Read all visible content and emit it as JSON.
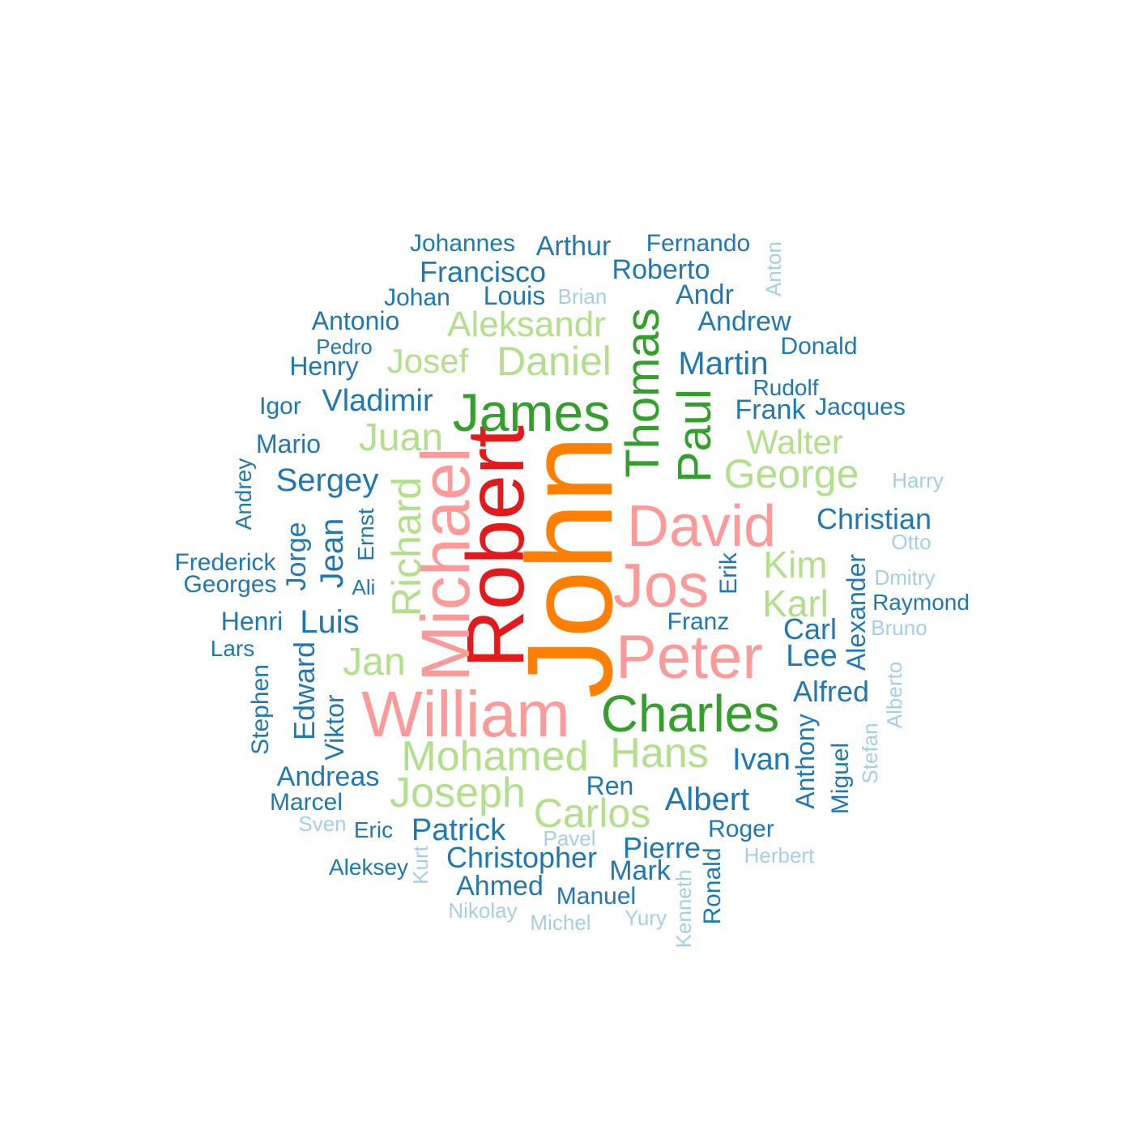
{
  "colors": {
    "tier1": "#ff7f00",
    "tier2": "#e31a1c",
    "tier3": "#fb9a99",
    "tier4": "#33a02c",
    "tier5": "#b2df8a",
    "tier6": "#1f78b4",
    "tier7": "#a6cee3"
  },
  "words": [
    "John",
    "Robert",
    "Michael",
    "David",
    "Jos",
    "Peter",
    "William",
    "James",
    "Thomas",
    "Paul",
    "Charles",
    "Aleksandr",
    "Daniel",
    "Josef",
    "Juan",
    "Richard",
    "Walter",
    "George",
    "Kim",
    "Karl",
    "Jan",
    "Mohamed",
    "Hans",
    "Joseph",
    "Carlos",
    "Johannes",
    "Arthur",
    "Fernando",
    "Francisco",
    "Roberto",
    "Johan",
    "Louis",
    "Andr",
    "Antonio",
    "Andrew",
    "Pedro",
    "Henry",
    "Martin",
    "Donald",
    "Vladimir",
    "Igor",
    "Rudolf",
    "Frank",
    "Jacques",
    "Mario",
    "Sergey",
    "Andrey",
    "Christian",
    "Jorge",
    "Jean",
    "Ernst",
    "Frederick",
    "Georges",
    "Ali",
    "Erik",
    "Henri",
    "Luis",
    "Franz",
    "Alexander",
    "Raymond",
    "Carl",
    "Lars",
    "Lee",
    "Stephen",
    "Edward",
    "Alfred",
    "Viktor",
    "Anthony",
    "Miguel",
    "Ivan",
    "Andreas",
    "Ren",
    "Albert",
    "Marcel",
    "Eric",
    "Patrick",
    "Roger",
    "Christopher",
    "Pierre",
    "Aleksey",
    "Mark",
    "Ronald",
    "Ahmed",
    "Manuel",
    "Anton",
    "Brian",
    "Harry",
    "Otto",
    "Dmitry",
    "Bruno",
    "Alberto",
    "Stefan",
    "Sven",
    "Pavel",
    "Herbert",
    "Kurt",
    "Kenneth",
    "Nikolay",
    "Michel",
    "Yury"
  ]
}
